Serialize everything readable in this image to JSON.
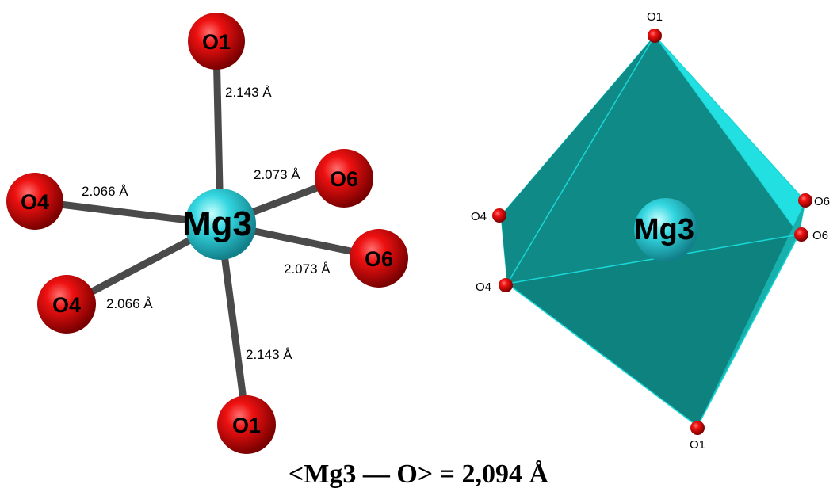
{
  "ball_and_stick": {
    "center": "Mg3",
    "oxygens": {
      "o1_top": "O1",
      "o6_upper": "O6",
      "o4_left": "O4",
      "o6_lower": "O6",
      "o4_lower": "O4",
      "o1_bottom": "O1"
    },
    "bonds": {
      "o1_top": "2.143 Å",
      "o6_upper": "2.073 Å",
      "o4_left": "2.066 Å",
      "o6_lower": "2.073 Å",
      "o4_lower": "2.066 Å",
      "o1_bottom": "2.143 Å"
    }
  },
  "polyhedron": {
    "center": "Mg3",
    "vertices": {
      "o1_top": "O1",
      "o6_upper": "O6",
      "o6_lower": "O6",
      "o4_upper": "O4",
      "o4_lower": "O4",
      "o1_bottom": "O1"
    }
  },
  "caption": "<Mg3 — O> = 2,094 Å",
  "colors": {
    "oxygen": "#ee1111",
    "magnesium": "#33d6e0",
    "bond": "#4a4a4a",
    "polyhedron_face": "#0f8a86",
    "polyhedron_edge": "#1ad6d6"
  }
}
